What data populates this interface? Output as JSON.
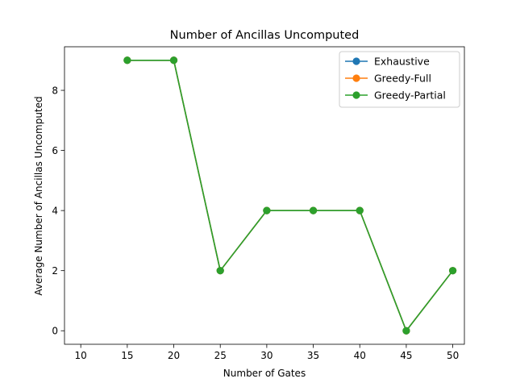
{
  "chart_data": {
    "type": "line",
    "title": "Number of Ancillas Uncomputed",
    "xlabel": "Number of Gates",
    "ylabel": "Average Number of Ancillas Uncomputed",
    "xlim": [
      8.25,
      51.25
    ],
    "ylim": [
      -0.45,
      9.45
    ],
    "xticks": [
      10,
      15,
      20,
      25,
      30,
      35,
      40,
      45,
      50
    ],
    "yticks": [
      0,
      2,
      4,
      6,
      8
    ],
    "grid": false,
    "legend_position": "top-right",
    "series": [
      {
        "name": "Exhaustive",
        "color": "#1f77b4",
        "marker": "circle",
        "x": [
          15,
          20,
          25,
          30,
          35,
          40,
          45,
          50
        ],
        "y": [
          9,
          9,
          2,
          4,
          4,
          4,
          0,
          2
        ]
      },
      {
        "name": "Greedy-Full",
        "color": "#ff7f0e",
        "marker": "circle",
        "x": [
          15,
          20,
          25,
          30,
          35,
          40,
          45,
          50
        ],
        "y": [
          9,
          9,
          2,
          4,
          4,
          4,
          0,
          2
        ]
      },
      {
        "name": "Greedy-Partial",
        "color": "#2ca02c",
        "marker": "circle",
        "x": [
          15,
          20,
          25,
          30,
          35,
          40,
          45,
          50
        ],
        "y": [
          9,
          9,
          2,
          4,
          4,
          4,
          0,
          2
        ]
      }
    ]
  }
}
